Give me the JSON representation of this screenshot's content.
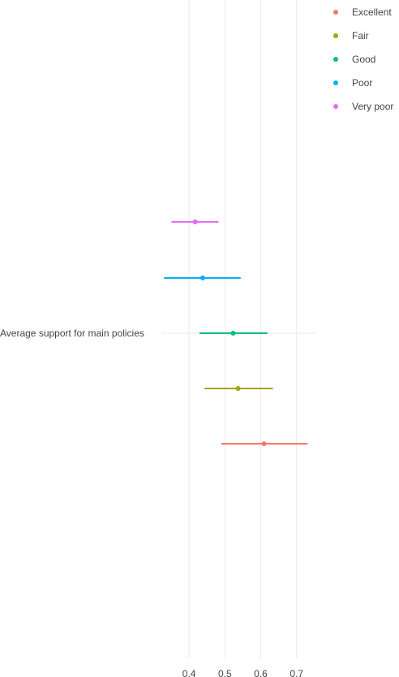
{
  "chart_data": {
    "type": "scatter",
    "orientation": "horizontal",
    "category": "Average support for main policies",
    "x_ticks": [
      0.4,
      0.5,
      0.6,
      0.7
    ],
    "xlim": [
      0.325,
      0.755
    ],
    "grid": true,
    "legend_placement": "top-right",
    "series": [
      {
        "name": "Excellent",
        "color": "#F8766D",
        "value": 0.609,
        "ci": [
          0.49,
          0.731
        ]
      },
      {
        "name": "Fair",
        "color": "#A3A500",
        "value": 0.537,
        "ci": [
          0.443,
          0.634
        ]
      },
      {
        "name": "Good",
        "color": "#00BF7D",
        "value": 0.523,
        "ci": [
          0.429,
          0.619
        ]
      },
      {
        "name": "Poor",
        "color": "#00B0F6",
        "value": 0.438,
        "ci": [
          0.33,
          0.544
        ]
      },
      {
        "name": "Very poor",
        "color": "#E76BF3",
        "value": 0.417,
        "ci": [
          0.351,
          0.482
        ]
      }
    ]
  }
}
